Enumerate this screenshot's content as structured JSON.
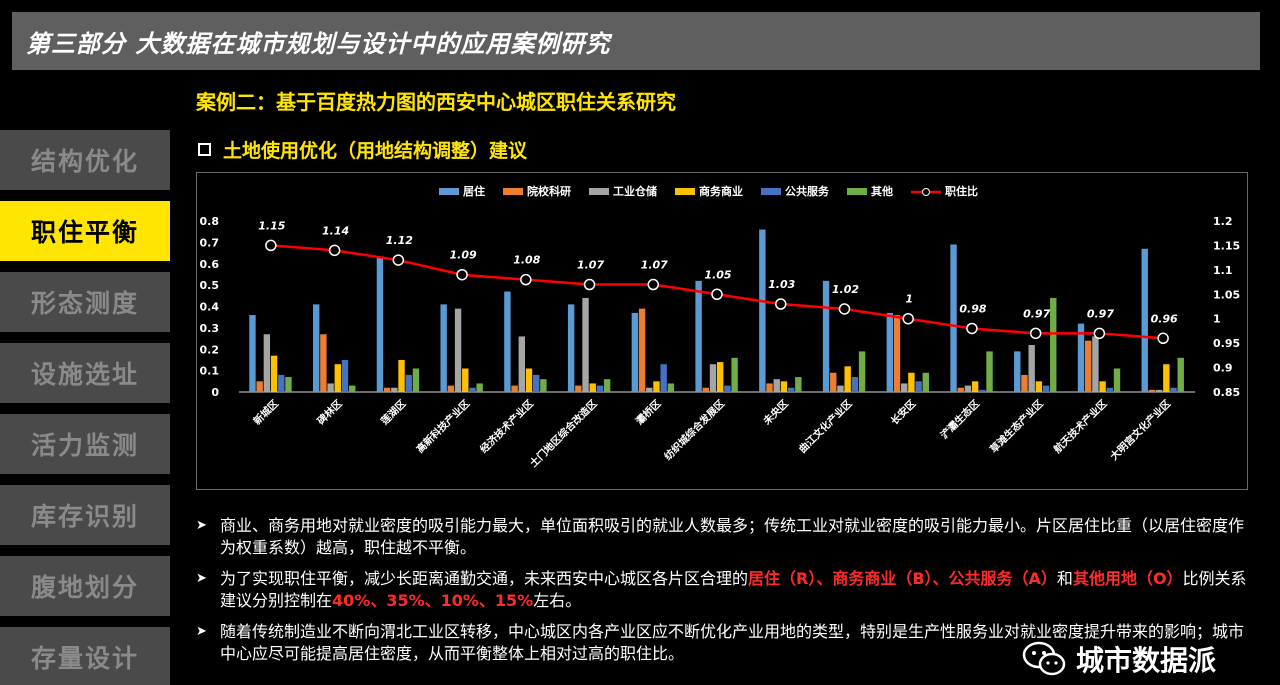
{
  "title": "第三部分  大数据在城市规划与设计中的应用案例研究",
  "case_title": "案例二：基于百度热力图的西安中心城区职住关系研究",
  "sub_title": "土地使用优化（用地结构调整）建议",
  "sidebar": {
    "items": [
      {
        "label": "结构优化",
        "active": false
      },
      {
        "label": "职住平衡",
        "active": true
      },
      {
        "label": "形态测度",
        "active": false
      },
      {
        "label": "设施选址",
        "active": false
      },
      {
        "label": "活力监测",
        "active": false
      },
      {
        "label": "库存识别",
        "active": false
      },
      {
        "label": "腹地划分",
        "active": false
      },
      {
        "label": "存量设计",
        "active": false
      }
    ]
  },
  "bullets": {
    "b1": "商业、商务用地对就业密度的吸引能力最大，单位面积吸引的就业人数最多；传统工业对就业密度的吸引能力最小。片区居住比重（以居住密度作为权重系数）越高，职住越不平衡。",
    "b2_pre": "为了实现职住平衡，减少长距离通勤交通，未来西安中心城区各片区合理的",
    "b2_r1": "居住（R）、商务商业（B）、公共服务（A）",
    "b2_mid1": "和",
    "b2_r2": "其他用地（O）",
    "b2_mid2": "比例关系建议分别控制在",
    "b2_r3": "40%、35%、10%、15%",
    "b2_post": "左右。",
    "b3": "随着传统制造业不断向渭北工业区转移，中心城区内各产业区应不断优化产业用地的类型，特别是生产性服务业对就业密度提升带来的影响；城市中心应尽可能提高居住密度，从而平衡整体上相对过高的职住比。"
  },
  "watermark": "城市数据派",
  "chart_data": {
    "type": "bar",
    "categories": [
      "新城区",
      "碑林区",
      "莲湖区",
      "高新科技产业区",
      "经济技术产业区",
      "土门地区综合改造区",
      "灞桥区",
      "纺织城综合发展区",
      "未央区",
      "曲江文化产业区",
      "长安区",
      "浐灞生态区",
      "草滩生态产业区",
      "航天技术产业区",
      "大明宫文化产业区"
    ],
    "series": [
      {
        "name": "居住",
        "color": "#5b9bd5",
        "values": [
          0.36,
          0.41,
          0.63,
          0.41,
          0.47,
          0.41,
          0.37,
          0.52,
          0.76,
          0.52,
          0.37,
          0.69,
          0.19,
          0.32,
          0.67
        ]
      },
      {
        "name": "院校科研",
        "color": "#ed7d31",
        "values": [
          0.05,
          0.27,
          0.02,
          0.03,
          0.03,
          0.03,
          0.39,
          0.02,
          0.04,
          0.09,
          0.36,
          0.02,
          0.08,
          0.24,
          0.01
        ]
      },
      {
        "name": "工业仓储",
        "color": "#a5a5a5",
        "values": [
          0.27,
          0.04,
          0.02,
          0.39,
          0.26,
          0.44,
          0.02,
          0.13,
          0.06,
          0.03,
          0.04,
          0.03,
          0.22,
          0.26,
          0.01
        ]
      },
      {
        "name": "商务商业",
        "color": "#ffc000",
        "values": [
          0.17,
          0.13,
          0.15,
          0.11,
          0.11,
          0.04,
          0.05,
          0.14,
          0.05,
          0.12,
          0.09,
          0.05,
          0.05,
          0.05,
          0.13
        ]
      },
      {
        "name": "公共服务",
        "color": "#4472c4",
        "values": [
          0.08,
          0.15,
          0.08,
          0.02,
          0.08,
          0.03,
          0.13,
          0.03,
          0.02,
          0.07,
          0.05,
          0.01,
          0.03,
          0.02,
          0.02
        ]
      },
      {
        "name": "其他",
        "color": "#70ad47",
        "values": [
          0.07,
          0.03,
          0.11,
          0.04,
          0.06,
          0.06,
          0.04,
          0.16,
          0.07,
          0.19,
          0.09,
          0.19,
          0.44,
          0.11,
          0.16
        ]
      }
    ],
    "line": {
      "name": "职住比",
      "color": "#ff0000",
      "values": [
        1.15,
        1.14,
        1.12,
        1.09,
        1.08,
        1.07,
        1.07,
        1.05,
        1.03,
        1.02,
        1,
        0.98,
        0.97,
        0.97,
        0.96
      ]
    },
    "y_left": {
      "min": 0,
      "max": 0.8,
      "ticks": [
        "0",
        "0.1",
        "0.2",
        "0.3",
        "0.4",
        "0.5",
        "0.6",
        "0.7",
        "0.8"
      ]
    },
    "y_right": {
      "min": 0.85,
      "max": 1.2,
      "ticks": [
        "0.85",
        "0.9",
        "0.95",
        "1",
        "1.05",
        "1.1",
        "1.15",
        "1.2"
      ]
    },
    "legend_position": "top",
    "grid": false
  }
}
